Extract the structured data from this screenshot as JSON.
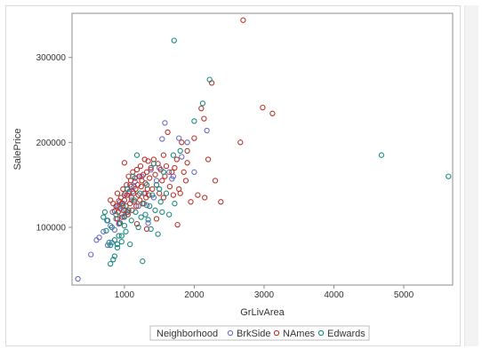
{
  "chart_data": {
    "type": "scatter",
    "title": "",
    "xlabel": "GrLivArea",
    "ylabel": "SalePrice",
    "xlim": [
      250,
      5700
    ],
    "ylim": [
      32000,
      352000
    ],
    "xticks": [
      1000,
      2000,
      3000,
      4000,
      5000
    ],
    "xtick_labels": [
      "1000",
      "2000",
      "3000",
      "4000",
      "5000"
    ],
    "yticks": [
      100000,
      200000,
      300000
    ],
    "ytick_labels": [
      "100000",
      "200000",
      "300000"
    ],
    "grid": false,
    "legend": {
      "title": "Neighborhood",
      "placement": "bottom",
      "entries": [
        "BrkSide",
        "NAmes",
        "Edwards"
      ]
    },
    "colors": {
      "BrkSide": "#6b6bc2",
      "NAmes": "#b8352a",
      "Edwards": "#1b8a80"
    },
    "series": [
      {
        "name": "BrkSide",
        "x": [
          334,
          520,
          600,
          640,
          700,
          760,
          800,
          830,
          860,
          880,
          900,
          920,
          940,
          960,
          980,
          1000,
          1020,
          1040,
          1050,
          1080,
          1100,
          1120,
          1150,
          1200,
          1220,
          1260,
          1300,
          1340,
          1380,
          1420,
          1460,
          1500,
          1540,
          1580,
          1640,
          1700,
          1780,
          1820,
          1900,
          2000,
          2180,
          750,
          820,
          920,
          1000,
          1060,
          1140,
          1250,
          1320,
          1680
        ],
        "y": [
          39300,
          68000,
          85000,
          88000,
          95000,
          79000,
          102000,
          118000,
          97000,
          110000,
          125000,
          104000,
          130000,
          115000,
          128000,
          138000,
          120000,
          145000,
          118000,
          150000,
          132000,
          142000,
          154000,
          125000,
          160000,
          128000,
          140000,
          105000,
          168000,
          135000,
          155000,
          170000,
          204000,
          223000,
          165000,
          160000,
          205000,
          183000,
          200000,
          165000,
          214000,
          108000,
          82000,
          124000,
          112000,
          140000,
          148000,
          160000,
          126000,
          157000
        ]
      },
      {
        "name": "NAmes",
        "x": [
          800,
          840,
          860,
          880,
          900,
          900,
          910,
          920,
          930,
          940,
          950,
          960,
          970,
          980,
          990,
          1000,
          1000,
          1010,
          1020,
          1030,
          1040,
          1050,
          1060,
          1070,
          1080,
          1090,
          1100,
          1100,
          1110,
          1120,
          1130,
          1140,
          1150,
          1160,
          1170,
          1180,
          1190,
          1200,
          1210,
          1220,
          1230,
          1240,
          1250,
          1260,
          1270,
          1280,
          1290,
          1300,
          1310,
          1320,
          1330,
          1340,
          1350,
          1360,
          1380,
          1400,
          1420,
          1440,
          1460,
          1480,
          1500,
          1520,
          1540,
          1560,
          1580,
          1600,
          1620,
          1650,
          1680,
          1700,
          1720,
          1750,
          1780,
          1800,
          1820,
          1850,
          1880,
          1900,
          1950,
          2000,
          2050,
          2100,
          2150,
          2200,
          2250,
          2300,
          2380,
          2660,
          2700,
          2980,
          3120,
          1040,
          1180,
          1320,
          1460,
          1560,
          1760,
          1900,
          2140
        ],
        "y": [
          132000,
          128000,
          119000,
          125000,
          110000,
          140000,
          118000,
          131000,
          105000,
          122000,
          135000,
          128000,
          112000,
          145000,
          120000,
          132000,
          176000,
          140000,
          125000,
          150000,
          138000,
          115000,
          160000,
          142000,
          128000,
          155000,
          135000,
          148000,
          120000,
          165000,
          140000,
          130000,
          158000,
          145000,
          125000,
          168000,
          150000,
          138000,
          160000,
          132000,
          172000,
          148000,
          155000,
          128000,
          162000,
          140000,
          180000,
          152000,
          135000,
          165000,
          145000,
          178000,
          138000,
          158000,
          170000,
          145000,
          180000,
          162000,
          150000,
          175000,
          140000,
          168000,
          155000,
          185000,
          160000,
          172000,
          212000,
          148000,
          165000,
          138000,
          170000,
          180000,
          145000,
          140000,
          200000,
          165000,
          155000,
          176000,
          130000,
          205000,
          138000,
          240000,
          135000,
          180000,
          270000,
          155000,
          130000,
          200000,
          344000,
          241000,
          234000,
          118000,
          104000,
          98000,
          110000,
          135000,
          103000,
          190000,
          228000
        ]
      },
      {
        "name": "Edwards",
        "x": [
          700,
          720,
          740,
          760,
          780,
          800,
          820,
          840,
          860,
          880,
          900,
          920,
          940,
          960,
          980,
          1000,
          1020,
          1040,
          1060,
          1080,
          1100,
          1120,
          1140,
          1160,
          1180,
          1200,
          1220,
          1240,
          1260,
          1280,
          1300,
          1320,
          1340,
          1360,
          1380,
          1400,
          1420,
          1440,
          1460,
          1480,
          1500,
          1520,
          1540,
          1560,
          1600,
          1640,
          1700,
          1720,
          1800,
          2000,
          2120,
          2220,
          1712,
          4680,
          5640,
          800,
          860,
          900,
          960,
          1000
        ],
        "y": [
          112000,
          118000,
          96000,
          108000,
          82000,
          79000,
          100000,
          62000,
          85000,
          115000,
          80000,
          90000,
          105000,
          83000,
          125000,
          113000,
          95000,
          145000,
          120000,
          80000,
          108000,
          160000,
          132000,
          118000,
          185000,
          100000,
          140000,
          112000,
          60000,
          128000,
          115000,
          150000,
          109000,
          125000,
          98000,
          138000,
          175000,
          120000,
          150000,
          92000,
          145000,
          130000,
          118000,
          165000,
          140000,
          115000,
          185000,
          128000,
          190000,
          225000,
          246000,
          274000,
          320000,
          185000,
          160000,
          57000,
          66000,
          76000,
          90000,
          102000
        ]
      }
    ]
  }
}
